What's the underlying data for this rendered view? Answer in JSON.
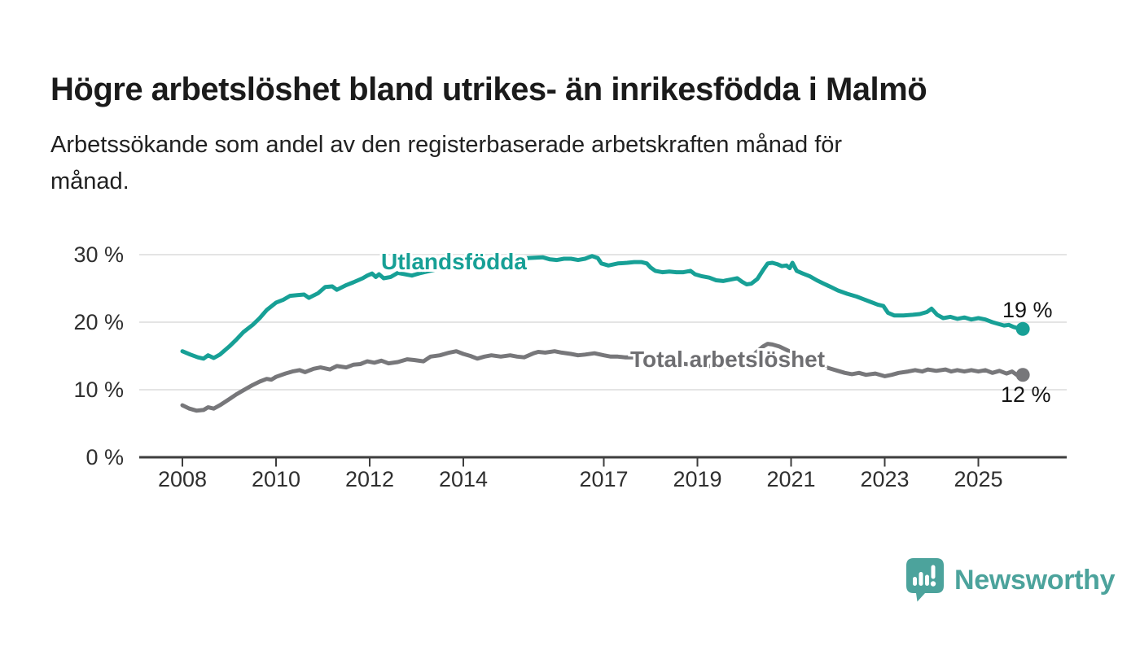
{
  "header": {
    "title": "Högre arbetslöshet bland utrikes- än inrikesfödda i Malmö",
    "subtitle_lines": [
      "Arbetssökande som andel av den registerbaserade arbetskraften månad för",
      "månad."
    ]
  },
  "footer": {
    "brand": "Newsworthy",
    "logo_icon": "speech-bubble-bar-chart-exclamation"
  },
  "colors": {
    "series_teal": "#17a096",
    "series_gray": "#77777a",
    "label_teal": "#17a096",
    "label_gray": "#6e6e71",
    "grid": "#dcdcdc",
    "axis": "#3e3e3e",
    "logo_teal": "#4ca39c"
  },
  "chart_data": {
    "type": "line",
    "title": "Högre arbetslöshet bland utrikes- än inrikesfödda i Malmö",
    "subtitle": "Arbetssökande som andel av den registerbaserade arbetskraften månad för månad.",
    "xlabel": "",
    "ylabel": "",
    "grid": "horizontal",
    "legend_position": "inline-labels",
    "xlim": [
      2007.1,
      2026.9
    ],
    "ylim": [
      0,
      33.5
    ],
    "x_ticks": [
      {
        "value": 2008,
        "label": "2008"
      },
      {
        "value": 2010,
        "label": "2010"
      },
      {
        "value": 2012,
        "label": "2012"
      },
      {
        "value": 2014,
        "label": "2014"
      },
      {
        "value": 2017,
        "label": "2017"
      },
      {
        "value": 2019,
        "label": "2019"
      },
      {
        "value": 2021,
        "label": "2021"
      },
      {
        "value": 2023,
        "label": "2023"
      },
      {
        "value": 2025,
        "label": "2025"
      }
    ],
    "y_ticks": [
      {
        "value": 0,
        "label": "0 %"
      },
      {
        "value": 10,
        "label": "10 %"
      },
      {
        "value": 20,
        "label": "20 %"
      },
      {
        "value": 30,
        "label": "30 %"
      }
    ],
    "series": [
      {
        "name": "Utlandsfödda",
        "color": "#17a096",
        "end_label": "19 %",
        "end_value": 19,
        "points": [
          [
            2008.0,
            15.7
          ],
          [
            2008.17,
            15.2
          ],
          [
            2008.33,
            14.8
          ],
          [
            2008.45,
            14.6
          ],
          [
            2008.55,
            15.1
          ],
          [
            2008.67,
            14.7
          ],
          [
            2008.8,
            15.2
          ],
          [
            2009.0,
            16.4
          ],
          [
            2009.15,
            17.4
          ],
          [
            2009.3,
            18.5
          ],
          [
            2009.5,
            19.6
          ],
          [
            2009.65,
            20.6
          ],
          [
            2009.8,
            21.8
          ],
          [
            2010.0,
            22.9
          ],
          [
            2010.15,
            23.3
          ],
          [
            2010.3,
            23.9
          ],
          [
            2010.45,
            24.0
          ],
          [
            2010.6,
            24.1
          ],
          [
            2010.7,
            23.6
          ],
          [
            2010.9,
            24.3
          ],
          [
            2011.05,
            25.2
          ],
          [
            2011.2,
            25.3
          ],
          [
            2011.3,
            24.8
          ],
          [
            2011.5,
            25.5
          ],
          [
            2011.65,
            25.9
          ],
          [
            2011.85,
            26.5
          ],
          [
            2011.95,
            26.9
          ],
          [
            2012.05,
            27.2
          ],
          [
            2012.13,
            26.7
          ],
          [
            2012.2,
            27.1
          ],
          [
            2012.3,
            26.5
          ],
          [
            2012.45,
            26.7
          ],
          [
            2012.6,
            27.3
          ],
          [
            2012.75,
            27.1
          ],
          [
            2012.9,
            26.9
          ],
          [
            2013.1,
            27.3
          ],
          [
            2013.35,
            27.7
          ],
          [
            2013.6,
            28.1
          ],
          [
            2013.85,
            28.5
          ],
          [
            2014.1,
            28.8
          ],
          [
            2014.35,
            29.0
          ],
          [
            2014.6,
            29.2
          ],
          [
            2014.85,
            29.3
          ],
          [
            2015.1,
            29.4
          ],
          [
            2015.4,
            29.5
          ],
          [
            2015.7,
            29.6
          ],
          [
            2015.85,
            29.3
          ],
          [
            2016.0,
            29.2
          ],
          [
            2016.15,
            29.4
          ],
          [
            2016.3,
            29.4
          ],
          [
            2016.45,
            29.2
          ],
          [
            2016.6,
            29.4
          ],
          [
            2016.75,
            29.8
          ],
          [
            2016.87,
            29.5
          ],
          [
            2016.95,
            28.7
          ],
          [
            2017.1,
            28.4
          ],
          [
            2017.3,
            28.7
          ],
          [
            2017.5,
            28.8
          ],
          [
            2017.65,
            28.9
          ],
          [
            2017.8,
            28.9
          ],
          [
            2017.92,
            28.7
          ],
          [
            2018.0,
            28.1
          ],
          [
            2018.1,
            27.6
          ],
          [
            2018.25,
            27.4
          ],
          [
            2018.4,
            27.5
          ],
          [
            2018.55,
            27.4
          ],
          [
            2018.7,
            27.4
          ],
          [
            2018.85,
            27.6
          ],
          [
            2018.95,
            27.1
          ],
          [
            2019.1,
            26.8
          ],
          [
            2019.25,
            26.6
          ],
          [
            2019.4,
            26.2
          ],
          [
            2019.55,
            26.1
          ],
          [
            2019.7,
            26.3
          ],
          [
            2019.85,
            26.5
          ],
          [
            2019.95,
            26.0
          ],
          [
            2020.05,
            25.6
          ],
          [
            2020.15,
            25.7
          ],
          [
            2020.28,
            26.4
          ],
          [
            2020.4,
            27.7
          ],
          [
            2020.5,
            28.7
          ],
          [
            2020.6,
            28.8
          ],
          [
            2020.7,
            28.6
          ],
          [
            2020.8,
            28.3
          ],
          [
            2020.9,
            28.4
          ],
          [
            2020.97,
            28.0
          ],
          [
            2021.03,
            28.8
          ],
          [
            2021.12,
            27.6
          ],
          [
            2021.25,
            27.2
          ],
          [
            2021.4,
            26.8
          ],
          [
            2021.55,
            26.2
          ],
          [
            2021.7,
            25.7
          ],
          [
            2021.85,
            25.2
          ],
          [
            2022.0,
            24.7
          ],
          [
            2022.2,
            24.2
          ],
          [
            2022.4,
            23.8
          ],
          [
            2022.55,
            23.4
          ],
          [
            2022.7,
            23.0
          ],
          [
            2022.85,
            22.6
          ],
          [
            2022.97,
            22.4
          ],
          [
            2023.07,
            21.4
          ],
          [
            2023.2,
            21.0
          ],
          [
            2023.4,
            21.0
          ],
          [
            2023.6,
            21.1
          ],
          [
            2023.75,
            21.2
          ],
          [
            2023.9,
            21.5
          ],
          [
            2024.0,
            22.0
          ],
          [
            2024.12,
            21.1
          ],
          [
            2024.25,
            20.6
          ],
          [
            2024.4,
            20.8
          ],
          [
            2024.55,
            20.5
          ],
          [
            2024.7,
            20.7
          ],
          [
            2024.85,
            20.4
          ],
          [
            2025.0,
            20.6
          ],
          [
            2025.15,
            20.4
          ],
          [
            2025.3,
            20.0
          ],
          [
            2025.45,
            19.7
          ],
          [
            2025.55,
            19.5
          ],
          [
            2025.65,
            19.6
          ],
          [
            2025.75,
            19.3
          ],
          [
            2025.85,
            19.1
          ],
          [
            2025.95,
            19.0
          ]
        ]
      },
      {
        "name": "Total arbetslöshet",
        "color": "#77777a",
        "end_label": "12 %",
        "end_value": 12,
        "points": [
          [
            2008.0,
            7.7
          ],
          [
            2008.15,
            7.2
          ],
          [
            2008.3,
            6.9
          ],
          [
            2008.45,
            7.0
          ],
          [
            2008.55,
            7.4
          ],
          [
            2008.67,
            7.2
          ],
          [
            2008.8,
            7.7
          ],
          [
            2009.0,
            8.6
          ],
          [
            2009.15,
            9.3
          ],
          [
            2009.3,
            9.9
          ],
          [
            2009.5,
            10.7
          ],
          [
            2009.65,
            11.2
          ],
          [
            2009.8,
            11.6
          ],
          [
            2009.9,
            11.5
          ],
          [
            2010.0,
            11.9
          ],
          [
            2010.2,
            12.4
          ],
          [
            2010.35,
            12.7
          ],
          [
            2010.5,
            12.9
          ],
          [
            2010.62,
            12.6
          ],
          [
            2010.8,
            13.1
          ],
          [
            2010.95,
            13.3
          ],
          [
            2011.15,
            13.0
          ],
          [
            2011.3,
            13.5
          ],
          [
            2011.5,
            13.3
          ],
          [
            2011.65,
            13.7
          ],
          [
            2011.8,
            13.8
          ],
          [
            2011.95,
            14.2
          ],
          [
            2012.1,
            14.0
          ],
          [
            2012.25,
            14.3
          ],
          [
            2012.4,
            13.9
          ],
          [
            2012.6,
            14.1
          ],
          [
            2012.8,
            14.5
          ],
          [
            2012.95,
            14.4
          ],
          [
            2013.15,
            14.2
          ],
          [
            2013.3,
            14.9
          ],
          [
            2013.5,
            15.1
          ],
          [
            2013.7,
            15.5
          ],
          [
            2013.85,
            15.7
          ],
          [
            2014.0,
            15.3
          ],
          [
            2014.15,
            15.0
          ],
          [
            2014.3,
            14.6
          ],
          [
            2014.45,
            14.9
          ],
          [
            2014.6,
            15.1
          ],
          [
            2014.8,
            14.9
          ],
          [
            2015.0,
            15.1
          ],
          [
            2015.15,
            14.9
          ],
          [
            2015.3,
            14.8
          ],
          [
            2015.5,
            15.4
          ],
          [
            2015.6,
            15.6
          ],
          [
            2015.75,
            15.5
          ],
          [
            2015.95,
            15.7
          ],
          [
            2016.1,
            15.5
          ],
          [
            2016.3,
            15.3
          ],
          [
            2016.45,
            15.1
          ],
          [
            2016.6,
            15.2
          ],
          [
            2016.8,
            15.4
          ],
          [
            2017.0,
            15.1
          ],
          [
            2017.15,
            14.9
          ],
          [
            2017.3,
            14.9
          ],
          [
            2017.45,
            14.8
          ],
          [
            2017.6,
            14.8
          ],
          [
            2017.8,
            14.6
          ],
          [
            2018.0,
            14.4
          ],
          [
            2018.25,
            14.2
          ],
          [
            2018.5,
            14.0
          ],
          [
            2018.75,
            13.8
          ],
          [
            2019.0,
            13.6
          ],
          [
            2019.25,
            13.5
          ],
          [
            2019.5,
            13.4
          ],
          [
            2019.75,
            13.4
          ],
          [
            2019.95,
            13.6
          ],
          [
            2020.1,
            14.3
          ],
          [
            2020.25,
            15.5
          ],
          [
            2020.4,
            16.4
          ],
          [
            2020.5,
            16.8
          ],
          [
            2020.6,
            16.7
          ],
          [
            2020.75,
            16.4
          ],
          [
            2020.9,
            15.9
          ],
          [
            2021.05,
            15.4
          ],
          [
            2021.2,
            14.9
          ],
          [
            2021.4,
            14.3
          ],
          [
            2021.6,
            13.7
          ],
          [
            2021.8,
            13.2
          ],
          [
            2022.0,
            12.8
          ],
          [
            2022.15,
            12.5
          ],
          [
            2022.3,
            12.3
          ],
          [
            2022.45,
            12.5
          ],
          [
            2022.6,
            12.2
          ],
          [
            2022.8,
            12.4
          ],
          [
            2023.0,
            12.0
          ],
          [
            2023.15,
            12.2
          ],
          [
            2023.3,
            12.5
          ],
          [
            2023.5,
            12.7
          ],
          [
            2023.65,
            12.9
          ],
          [
            2023.8,
            12.7
          ],
          [
            2023.92,
            13.0
          ],
          [
            2024.1,
            12.8
          ],
          [
            2024.3,
            13.0
          ],
          [
            2024.42,
            12.7
          ],
          [
            2024.55,
            12.9
          ],
          [
            2024.7,
            12.7
          ],
          [
            2024.85,
            12.9
          ],
          [
            2025.0,
            12.7
          ],
          [
            2025.15,
            12.9
          ],
          [
            2025.3,
            12.5
          ],
          [
            2025.45,
            12.8
          ],
          [
            2025.6,
            12.4
          ],
          [
            2025.72,
            12.7
          ],
          [
            2025.82,
            12.2
          ],
          [
            2025.95,
            12.2
          ]
        ]
      }
    ]
  }
}
